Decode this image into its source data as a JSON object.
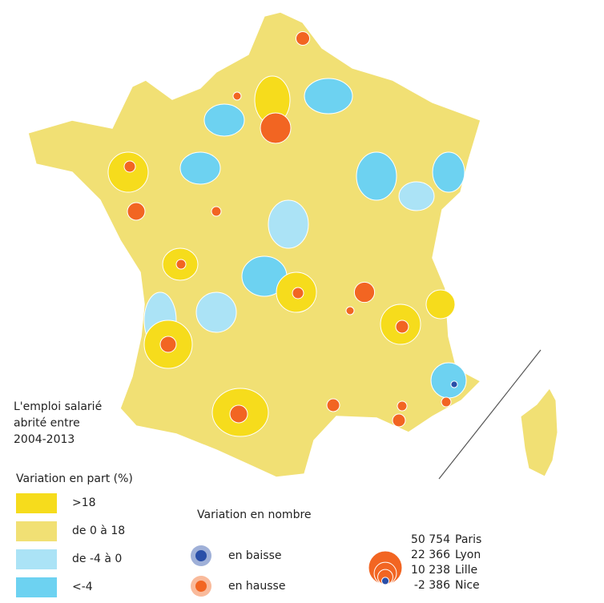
{
  "title_lines": [
    "L'emploi salarié",
    "abrité entre",
    "2004-2013"
  ],
  "share_legend": {
    "title": "Variation en part (%)",
    "items": [
      {
        "label": ">18",
        "color": "#f6dc1c"
      },
      {
        "label": "de 0 à 18",
        "color": "#f1e074"
      },
      {
        "label": "de -4 à 0",
        "color": "#abe3f6"
      },
      {
        "label": "<-4",
        "color": "#6dd2f1"
      }
    ]
  },
  "count_legend": {
    "title": "Variation en nombre",
    "items": [
      {
        "label": "en baisse",
        "color": "#2a4fa8"
      },
      {
        "label": "en hausse",
        "color": "#f26522"
      }
    ]
  },
  "size_legend": [
    {
      "value": 50754,
      "label": "50 754",
      "city": "Paris"
    },
    {
      "value": 22366,
      "label": "22 366",
      "city": "Lyon"
    },
    {
      "value": 10238,
      "label": "10 238",
      "city": "Lille"
    },
    {
      "value": -2386,
      "label": "-2 386",
      "city": "Nice"
    }
  ]
}
